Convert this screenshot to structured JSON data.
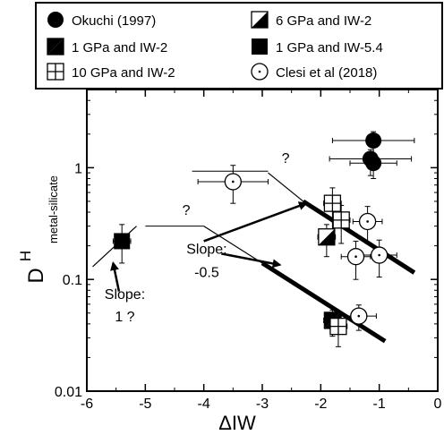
{
  "chart_data": {
    "type": "scatter",
    "title": "",
    "xlabel": "ΔIW",
    "ylabel_main": "D",
    "ylabel_sup": "H",
    "ylabel_sub": "metal-silicate",
    "xlim": [
      -6,
      0
    ],
    "ylim": [
      0.01,
      5
    ],
    "yscale": "log",
    "xticks": [
      -6,
      -5,
      -4,
      -3,
      -2,
      -1,
      0
    ],
    "yticks": [
      0.01,
      0.1,
      1
    ],
    "ytick_labels": [
      "0.01",
      "0.1",
      "1"
    ],
    "legend_position": "top",
    "legend": [
      {
        "label": "Okuchi (1997)",
        "marker": "filled-circle"
      },
      {
        "label": "6 GPa and IW-2",
        "marker": "half-square-filled"
      },
      {
        "label": "1 GPa and IW-2",
        "marker": "half-square-triangle"
      },
      {
        "label": "1 GPa and IW-5.4",
        "marker": "filled-square"
      },
      {
        "label": "10 GPa and IW-2",
        "marker": "crossed-square"
      },
      {
        "label": "Clesi et al (2018)",
        "marker": "dotted-circle"
      }
    ],
    "series": [
      {
        "name": "Okuchi (1997)",
        "marker": "filled-circle",
        "points": [
          {
            "x": -1.1,
            "y": 1.75,
            "xerr": 0.7,
            "yerr_lo": 0.55,
            "yerr_hi": 0.35
          },
          {
            "x": -1.15,
            "y": 1.2,
            "xerr": 0.7,
            "yerr_lo": 0.35,
            "yerr_hi": 0.25
          },
          {
            "x": -1.1,
            "y": 1.1,
            "xerr": 0.4,
            "yerr_lo": 0.3,
            "yerr_hi": 0.2
          }
        ]
      },
      {
        "name": "6 GPa and IW-2",
        "marker": "half-square-filled",
        "points": [
          {
            "x": -1.9,
            "y": 0.24,
            "xerr": 0.15,
            "yerr_lo": 0.08,
            "yerr_hi": 0.07
          }
        ]
      },
      {
        "name": "1 GPa and IW-2",
        "marker": "half-square-triangle",
        "points": [
          {
            "x": -1.8,
            "y": 0.043,
            "xerr": 0.15,
            "yerr_lo": 0.012,
            "yerr_hi": 0.01
          }
        ]
      },
      {
        "name": "1 GPa and IW-5.4",
        "marker": "filled-square",
        "points": [
          {
            "x": -5.4,
            "y": 0.22,
            "xerr": 0.15,
            "yerr_lo": 0.08,
            "yerr_hi": 0.09
          }
        ]
      },
      {
        "name": "10 GPa and IW-2",
        "marker": "crossed-square",
        "points": [
          {
            "x": -1.8,
            "y": 0.48,
            "xerr": 0.15,
            "yerr_lo": 0.2,
            "yerr_hi": 0.18
          },
          {
            "x": -1.65,
            "y": 0.34,
            "xerr": 0.15,
            "yerr_lo": 0.13,
            "yerr_hi": 0.12
          },
          {
            "x": -1.7,
            "y": 0.038,
            "xerr": 0.15,
            "yerr_lo": 0.013,
            "yerr_hi": 0.012
          }
        ]
      },
      {
        "name": "Clesi et al (2018)",
        "marker": "dotted-circle",
        "points": [
          {
            "x": -3.5,
            "y": 0.75,
            "xerr": 0.6,
            "yerr_lo": 0.27,
            "yerr_hi": 0.3
          },
          {
            "x": -1.2,
            "y": 0.33,
            "xerr": 0.25,
            "yerr_lo": 0.12,
            "yerr_hi": 0.12
          },
          {
            "x": -1.4,
            "y": 0.16,
            "xerr": 0.25,
            "yerr_lo": 0.06,
            "yerr_hi": 0.06
          },
          {
            "x": -1.0,
            "y": 0.165,
            "xerr": 0.3,
            "yerr_lo": 0.06,
            "yerr_hi": 0.06
          },
          {
            "x": -1.35,
            "y": 0.047,
            "xerr": 0.3,
            "yerr_lo": 0.012,
            "yerr_hi": 0.012
          }
        ]
      }
    ],
    "trend_lines": [
      {
        "name": "slope-0.5-upper",
        "from": [
          -2.3,
          0.5
        ],
        "to": [
          -0.4,
          0.115
        ],
        "weight": "thick"
      },
      {
        "name": "slope-0.5-upper-thin",
        "from": [
          -2.9,
          0.9
        ],
        "to": [
          -2.3,
          0.5
        ],
        "weight": "thin"
      },
      {
        "name": "slope-0.5-lower",
        "from": [
          -3.0,
          0.14
        ],
        "to": [
          -0.9,
          0.028
        ],
        "weight": "thick"
      },
      {
        "name": "slope-0.5-lower-thin",
        "from": [
          -4.0,
          0.3
        ],
        "to": [
          -3.0,
          0.14
        ],
        "weight": "thin"
      },
      {
        "name": "slope-1-line",
        "from": [
          -5.9,
          0.13
        ],
        "to": [
          -5.15,
          0.3
        ],
        "weight": "thin"
      }
    ],
    "reference_lines": [
      {
        "name": "upper-question-line",
        "from": [
          -4.2,
          0.93
        ],
        "to": [
          -2.9,
          0.93
        ]
      },
      {
        "name": "lower-question-line",
        "from": [
          -5.0,
          0.3
        ],
        "to": [
          -4.0,
          0.3
        ]
      }
    ],
    "annotations": [
      {
        "name": "question-upper",
        "text": "?",
        "x": -2.6,
        "y": 1.1
      },
      {
        "name": "question-lower",
        "text": "?",
        "x": -4.3,
        "y": 0.38
      },
      {
        "name": "slope-label-line1",
        "text": "Slope:",
        "x": -3.95,
        "y": 0.17
      },
      {
        "name": "slope-label-line2",
        "text": "-0.5",
        "x": -3.95,
        "y": 0.105
      },
      {
        "name": "slope1-label-line1",
        "text": "Slope:",
        "x": -5.35,
        "y": 0.067
      },
      {
        "name": "slope1-label-line2",
        "text": "1 ?",
        "x": -5.35,
        "y": 0.042
      }
    ],
    "arrows": [
      {
        "name": "arrow-to-upper-line",
        "from": [
          -4.0,
          0.22
        ],
        "to": [
          -2.25,
          0.48
        ]
      },
      {
        "name": "arrow-to-lower-line",
        "from": [
          -3.7,
          0.17
        ],
        "to": [
          -2.7,
          0.135
        ]
      },
      {
        "name": "arrow-to-slope1",
        "from": [
          -5.45,
          0.078
        ],
        "to": [
          -5.55,
          0.14
        ]
      }
    ],
    "grid": false
  }
}
